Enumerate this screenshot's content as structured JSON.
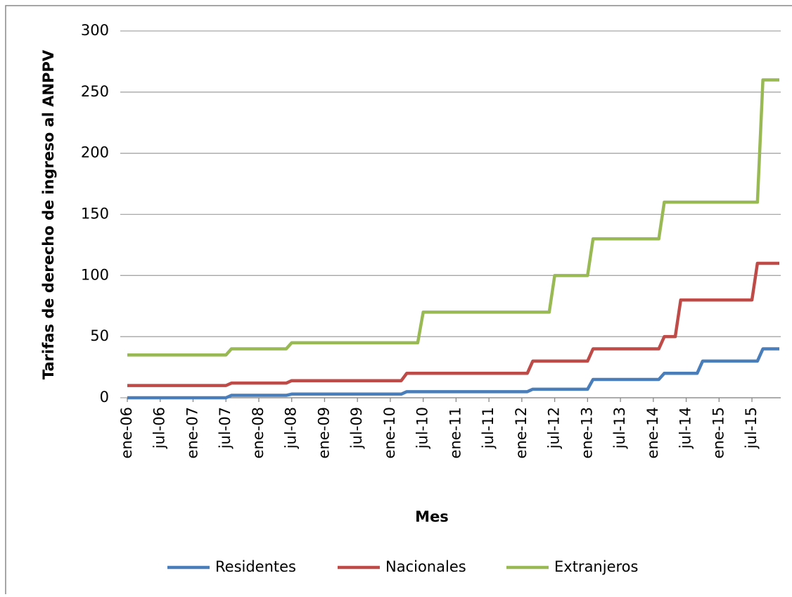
{
  "chart_data": {
    "type": "line",
    "x_label": "Mes",
    "y_label": "Tarifas de derecho de ingreso al ANPPV",
    "categories": [
      "ene-06",
      null,
      null,
      null,
      null,
      null,
      "jul-06",
      null,
      null,
      null,
      null,
      null,
      "ene-07",
      null,
      null,
      null,
      null,
      null,
      "jul-07",
      null,
      null,
      null,
      null,
      null,
      "ene-08",
      null,
      null,
      null,
      null,
      null,
      "jul-08",
      null,
      null,
      null,
      null,
      null,
      "ene-09",
      null,
      null,
      null,
      null,
      null,
      "jul-09",
      null,
      null,
      null,
      null,
      null,
      "ene-10",
      null,
      null,
      null,
      null,
      null,
      "jul-10",
      null,
      null,
      null,
      null,
      null,
      "ene-11",
      null,
      null,
      null,
      null,
      null,
      "jul-11",
      null,
      null,
      null,
      null,
      null,
      "ene-12",
      null,
      null,
      null,
      null,
      null,
      "jul-12",
      null,
      null,
      null,
      null,
      null,
      "ene-13",
      null,
      null,
      null,
      null,
      null,
      "jul-13",
      null,
      null,
      null,
      null,
      null,
      "ene-14",
      null,
      null,
      null,
      null,
      null,
      "jul-14",
      null,
      null,
      null,
      null,
      null,
      "ene-15",
      null,
      null,
      null,
      null,
      null,
      "jul-15",
      null,
      null,
      null,
      null,
      null
    ],
    "series": [
      {
        "name": "Residentes",
        "color": "#4a7ebb",
        "values": [
          0,
          0,
          0,
          0,
          0,
          0,
          0,
          0,
          0,
          0,
          0,
          0,
          0,
          0,
          0,
          0,
          0,
          0,
          0,
          2,
          2,
          2,
          2,
          2,
          2,
          2,
          2,
          2,
          2,
          2,
          3,
          3,
          3,
          3,
          3,
          3,
          3,
          3,
          3,
          3,
          3,
          3,
          3,
          3,
          3,
          3,
          3,
          3,
          3,
          3,
          3,
          5,
          5,
          5,
          5,
          5,
          5,
          5,
          5,
          5,
          5,
          5,
          5,
          5,
          5,
          5,
          5,
          5,
          5,
          5,
          5,
          5,
          5,
          5,
          7,
          7,
          7,
          7,
          7,
          7,
          7,
          7,
          7,
          7,
          7,
          15,
          15,
          15,
          15,
          15,
          15,
          15,
          15,
          15,
          15,
          15,
          15,
          15,
          20,
          20,
          20,
          20,
          20,
          20,
          20,
          30,
          30,
          30,
          30,
          30,
          30,
          30,
          30,
          30,
          30,
          30,
          40,
          40,
          40,
          40
        ]
      },
      {
        "name": "Nacionales",
        "color": "#be4b48",
        "values": [
          10,
          10,
          10,
          10,
          10,
          10,
          10,
          10,
          10,
          10,
          10,
          10,
          10,
          10,
          10,
          10,
          10,
          10,
          10,
          12,
          12,
          12,
          12,
          12,
          12,
          12,
          12,
          12,
          12,
          12,
          14,
          14,
          14,
          14,
          14,
          14,
          14,
          14,
          14,
          14,
          14,
          14,
          14,
          14,
          14,
          14,
          14,
          14,
          14,
          14,
          14,
          20,
          20,
          20,
          20,
          20,
          20,
          20,
          20,
          20,
          20,
          20,
          20,
          20,
          20,
          20,
          20,
          20,
          20,
          20,
          20,
          20,
          20,
          20,
          30,
          30,
          30,
          30,
          30,
          30,
          30,
          30,
          30,
          30,
          30,
          40,
          40,
          40,
          40,
          40,
          40,
          40,
          40,
          40,
          40,
          40,
          40,
          40,
          50,
          50,
          50,
          80,
          80,
          80,
          80,
          80,
          80,
          80,
          80,
          80,
          80,
          80,
          80,
          80,
          80,
          110,
          110,
          110,
          110,
          110
        ]
      },
      {
        "name": "Extranjeros",
        "color": "#98b954",
        "values": [
          35,
          35,
          35,
          35,
          35,
          35,
          35,
          35,
          35,
          35,
          35,
          35,
          35,
          35,
          35,
          35,
          35,
          35,
          35,
          40,
          40,
          40,
          40,
          40,
          40,
          40,
          40,
          40,
          40,
          40,
          45,
          45,
          45,
          45,
          45,
          45,
          45,
          45,
          45,
          45,
          45,
          45,
          45,
          45,
          45,
          45,
          45,
          45,
          45,
          45,
          45,
          45,
          45,
          45,
          70,
          70,
          70,
          70,
          70,
          70,
          70,
          70,
          70,
          70,
          70,
          70,
          70,
          70,
          70,
          70,
          70,
          70,
          70,
          70,
          70,
          70,
          70,
          70,
          100,
          100,
          100,
          100,
          100,
          100,
          100,
          130,
          130,
          130,
          130,
          130,
          130,
          130,
          130,
          130,
          130,
          130,
          130,
          130,
          160,
          160,
          160,
          160,
          160,
          160,
          160,
          160,
          160,
          160,
          160,
          160,
          160,
          160,
          160,
          160,
          160,
          160,
          260,
          260,
          260,
          260
        ]
      }
    ],
    "ylim": [
      0,
      300
    ],
    "yticks": [
      0,
      50,
      100,
      150,
      200,
      250,
      300
    ],
    "grid": true,
    "legend": "bottom"
  }
}
